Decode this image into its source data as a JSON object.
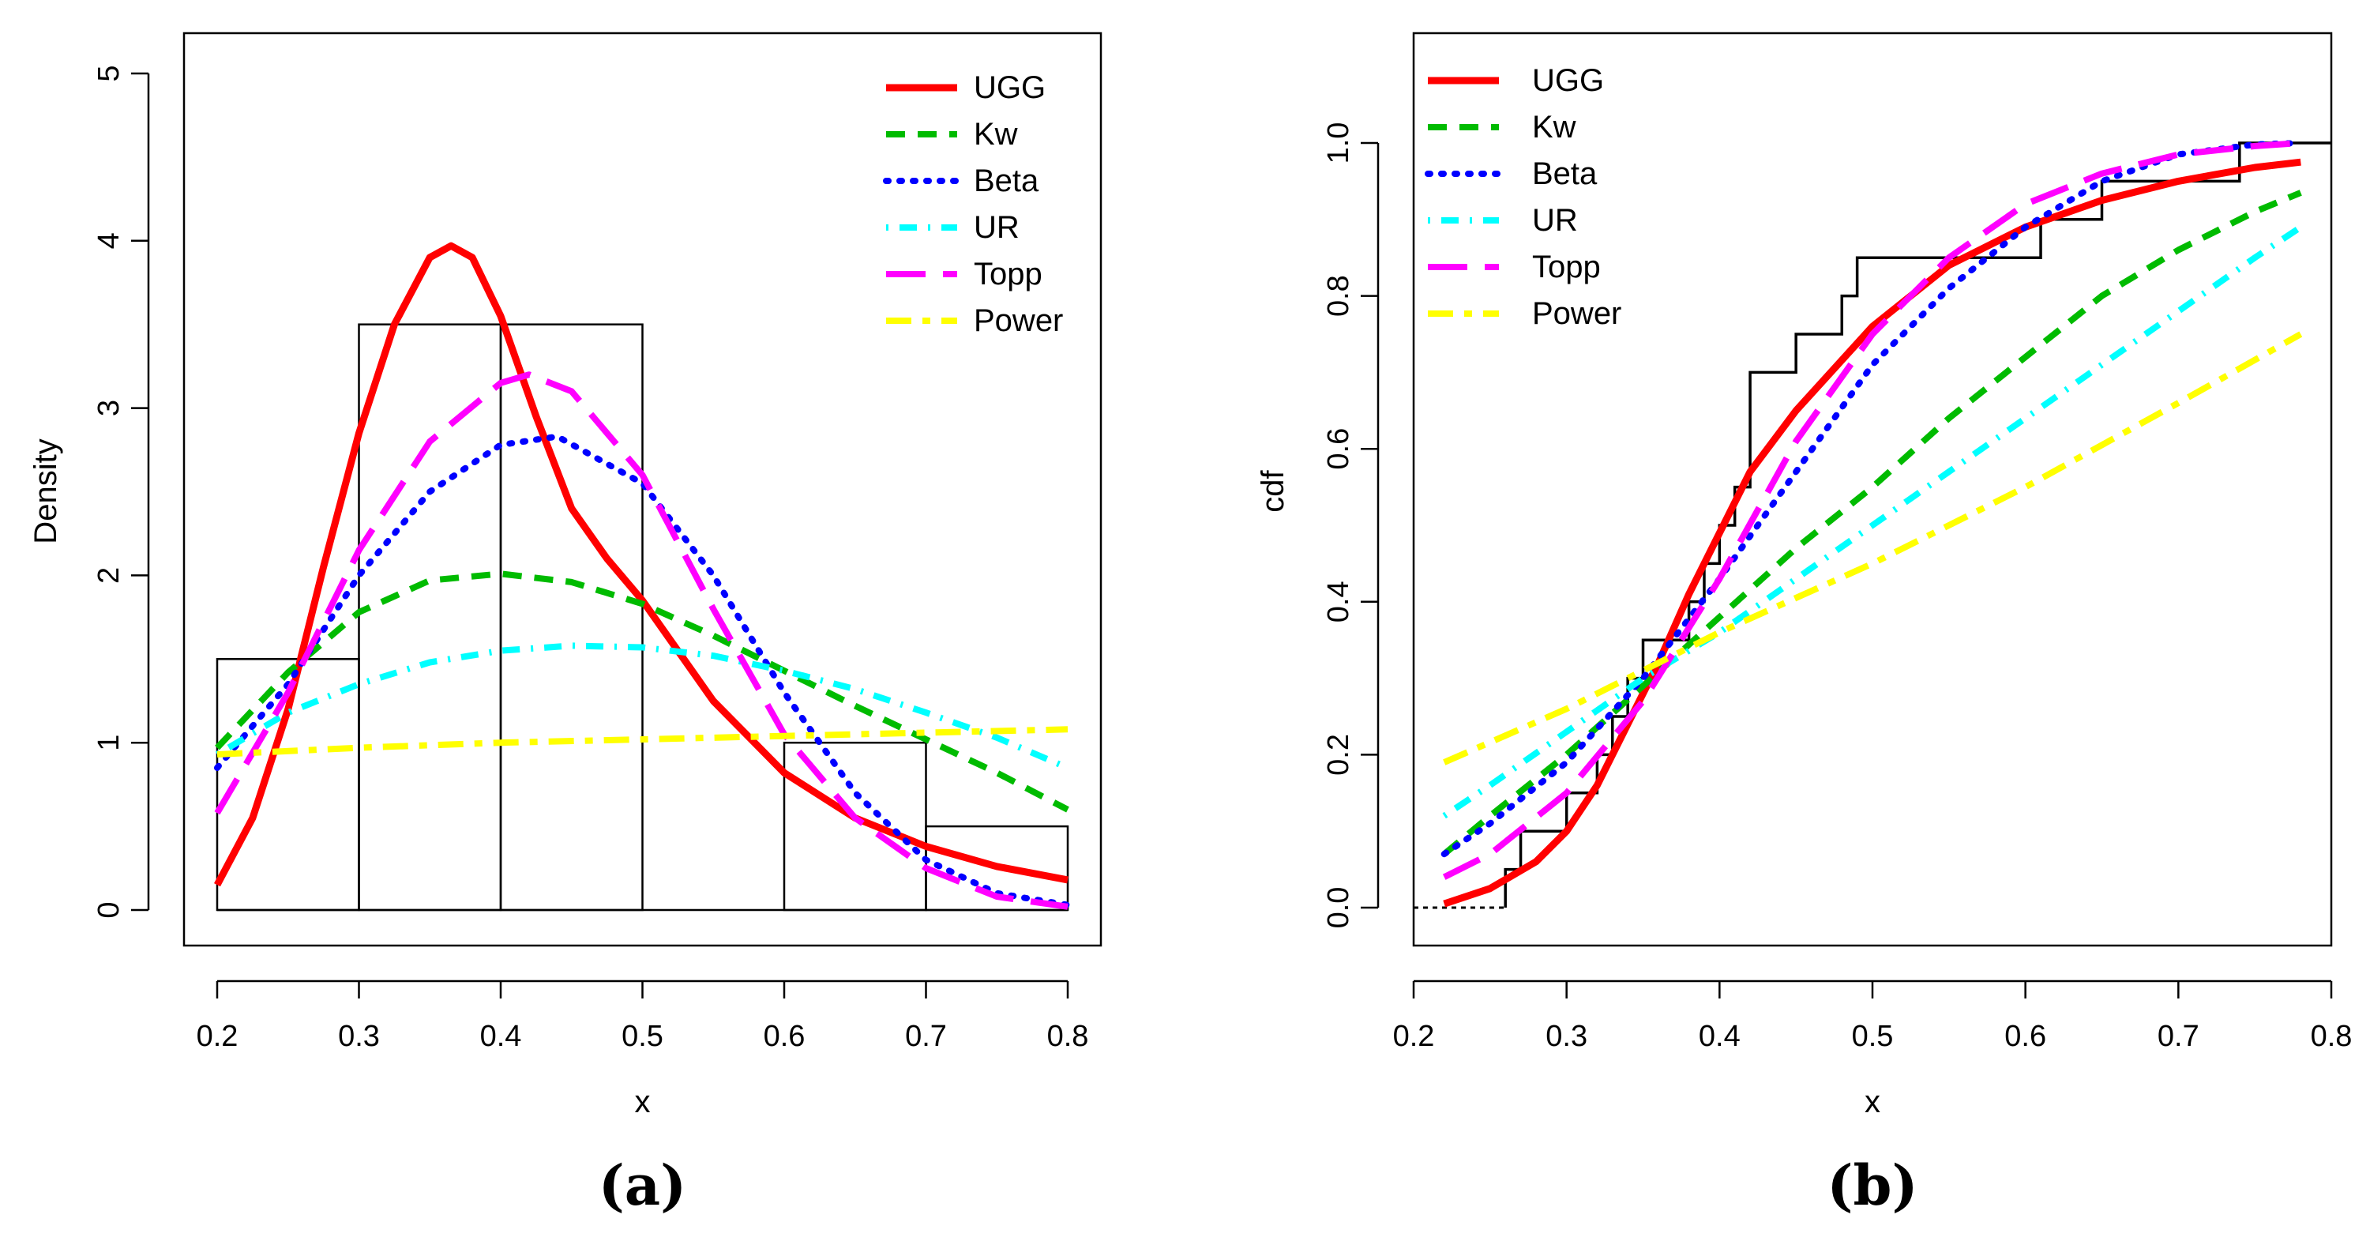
{
  "chart_data": [
    {
      "type": "histogram+density",
      "panel_label": "(a)",
      "xlabel": "x",
      "ylabel": "Density",
      "xlim": [
        0.2,
        0.8
      ],
      "ylim": [
        0,
        5
      ],
      "xticks": [
        "0.2",
        "0.3",
        "0.4",
        "0.5",
        "0.6",
        "0.7",
        "0.8"
      ],
      "yticks": [
        "0",
        "1",
        "2",
        "3",
        "4",
        "5"
      ],
      "legend_position": "top-right",
      "histogram": {
        "bin_edges": [
          0.2,
          0.3,
          0.4,
          0.5,
          0.6,
          0.7,
          0.8
        ],
        "density": [
          1.5,
          3.5,
          3.5,
          0,
          1.0,
          0.5
        ]
      },
      "series": [
        {
          "name": "UGG",
          "color": "#ff0000",
          "dash": "solid",
          "x": [
            0.2,
            0.225,
            0.25,
            0.275,
            0.3,
            0.325,
            0.35,
            0.365,
            0.38,
            0.4,
            0.425,
            0.45,
            0.475,
            0.5,
            0.55,
            0.6,
            0.65,
            0.7,
            0.75,
            0.8
          ],
          "y": [
            0.15,
            0.55,
            1.2,
            2.05,
            2.85,
            3.5,
            3.9,
            3.97,
            3.9,
            3.55,
            2.95,
            2.4,
            2.1,
            1.85,
            1.25,
            0.82,
            0.55,
            0.38,
            0.26,
            0.18
          ]
        },
        {
          "name": "Kw",
          "color": "#00bb00",
          "dash": "dashed",
          "x": [
            0.2,
            0.25,
            0.3,
            0.35,
            0.4,
            0.45,
            0.5,
            0.55,
            0.6,
            0.65,
            0.7,
            0.75,
            0.8
          ],
          "y": [
            0.97,
            1.42,
            1.78,
            1.97,
            2.01,
            1.96,
            1.83,
            1.64,
            1.43,
            1.22,
            1.02,
            0.82,
            0.6
          ]
        },
        {
          "name": "Beta",
          "color": "#0000ff",
          "dash": "dotted",
          "x": [
            0.2,
            0.25,
            0.3,
            0.35,
            0.4,
            0.44,
            0.5,
            0.55,
            0.6,
            0.65,
            0.7,
            0.75,
            0.8
          ],
          "y": [
            0.85,
            1.35,
            2.0,
            2.5,
            2.78,
            2.83,
            2.55,
            2.0,
            1.3,
            0.7,
            0.3,
            0.1,
            0.03
          ]
        },
        {
          "name": "UR",
          "color": "#00ffff",
          "dash": "dotdash",
          "x": [
            0.2,
            0.25,
            0.3,
            0.35,
            0.4,
            0.45,
            0.5,
            0.55,
            0.6,
            0.65,
            0.7,
            0.75,
            0.8
          ],
          "y": [
            0.93,
            1.18,
            1.35,
            1.48,
            1.55,
            1.58,
            1.57,
            1.52,
            1.43,
            1.32,
            1.18,
            1.03,
            0.85
          ]
        },
        {
          "name": "Topp",
          "color": "#ff00ff",
          "dash": "longdash",
          "x": [
            0.2,
            0.25,
            0.3,
            0.35,
            0.4,
            0.42,
            0.45,
            0.5,
            0.55,
            0.6,
            0.65,
            0.7,
            0.75,
            0.8
          ],
          "y": [
            0.58,
            1.3,
            2.15,
            2.8,
            3.15,
            3.2,
            3.1,
            2.6,
            1.8,
            1.05,
            0.55,
            0.25,
            0.08,
            0.02
          ]
        },
        {
          "name": "Power",
          "color": "#ffff00",
          "dash": "twodash",
          "x": [
            0.2,
            0.3,
            0.4,
            0.5,
            0.6,
            0.7,
            0.8
          ],
          "y": [
            0.93,
            0.97,
            1.0,
            1.02,
            1.04,
            1.06,
            1.08
          ]
        }
      ]
    },
    {
      "type": "ecdf+cdf",
      "panel_label": "(b)",
      "xlabel": "x",
      "ylabel": "cdf",
      "xlim": [
        0.2,
        0.8
      ],
      "ylim": [
        0.0,
        1.0
      ],
      "xticks": [
        "0.2",
        "0.3",
        "0.4",
        "0.5",
        "0.6",
        "0.7",
        "0.8"
      ],
      "yticks": [
        "0.0",
        "0.2",
        "0.4",
        "0.6",
        "0.8",
        "1.0"
      ],
      "legend_position": "top-left",
      "ecdf": {
        "x": [
          0.26,
          0.27,
          0.3,
          0.32,
          0.33,
          0.34,
          0.35,
          0.38,
          0.39,
          0.4,
          0.41,
          0.42,
          0.45,
          0.48,
          0.49,
          0.56,
          0.61,
          0.65,
          0.74
        ],
        "y": [
          0.05,
          0.1,
          0.15,
          0.2,
          0.25,
          0.3,
          0.35,
          0.4,
          0.45,
          0.5,
          0.55,
          0.7,
          0.75,
          0.8,
          0.85,
          0.85,
          0.9,
          0.95,
          1.0
        ]
      },
      "series": [
        {
          "name": "UGG",
          "color": "#ff0000",
          "dash": "solid",
          "x": [
            0.22,
            0.25,
            0.28,
            0.3,
            0.32,
            0.34,
            0.36,
            0.38,
            0.4,
            0.42,
            0.45,
            0.5,
            0.55,
            0.6,
            0.65,
            0.7,
            0.75,
            0.78
          ],
          "y": [
            0.005,
            0.025,
            0.06,
            0.1,
            0.16,
            0.24,
            0.32,
            0.41,
            0.49,
            0.57,
            0.65,
            0.76,
            0.84,
            0.89,
            0.925,
            0.95,
            0.968,
            0.975
          ]
        },
        {
          "name": "Kw",
          "color": "#00bb00",
          "dash": "dashed",
          "x": [
            0.22,
            0.25,
            0.3,
            0.35,
            0.4,
            0.45,
            0.5,
            0.55,
            0.6,
            0.65,
            0.7,
            0.75,
            0.78
          ],
          "y": [
            0.07,
            0.12,
            0.2,
            0.29,
            0.38,
            0.47,
            0.55,
            0.64,
            0.72,
            0.8,
            0.86,
            0.91,
            0.935
          ]
        },
        {
          "name": "Beta",
          "color": "#0000ff",
          "dash": "dotted",
          "x": [
            0.22,
            0.25,
            0.3,
            0.35,
            0.4,
            0.45,
            0.5,
            0.55,
            0.6,
            0.65,
            0.7,
            0.75,
            0.78
          ],
          "y": [
            0.07,
            0.11,
            0.19,
            0.3,
            0.43,
            0.57,
            0.71,
            0.81,
            0.89,
            0.95,
            0.985,
            0.998,
            1.0
          ]
        },
        {
          "name": "UR",
          "color": "#00ffff",
          "dash": "dotdash",
          "x": [
            0.22,
            0.25,
            0.3,
            0.35,
            0.4,
            0.45,
            0.5,
            0.55,
            0.6,
            0.65,
            0.7,
            0.75,
            0.78
          ],
          "y": [
            0.12,
            0.16,
            0.23,
            0.3,
            0.36,
            0.43,
            0.5,
            0.57,
            0.64,
            0.71,
            0.78,
            0.85,
            0.89
          ]
        },
        {
          "name": "Topp",
          "color": "#ff00ff",
          "dash": "longdash",
          "x": [
            0.22,
            0.25,
            0.3,
            0.35,
            0.4,
            0.45,
            0.5,
            0.55,
            0.6,
            0.65,
            0.7,
            0.75,
            0.78
          ],
          "y": [
            0.04,
            0.07,
            0.15,
            0.27,
            0.43,
            0.61,
            0.75,
            0.85,
            0.92,
            0.96,
            0.985,
            0.996,
            1.0
          ]
        },
        {
          "name": "Power",
          "color": "#ffff00",
          "dash": "twodash",
          "x": [
            0.22,
            0.3,
            0.4,
            0.5,
            0.6,
            0.7,
            0.78
          ],
          "y": [
            0.19,
            0.26,
            0.36,
            0.45,
            0.55,
            0.66,
            0.75
          ]
        }
      ]
    }
  ]
}
